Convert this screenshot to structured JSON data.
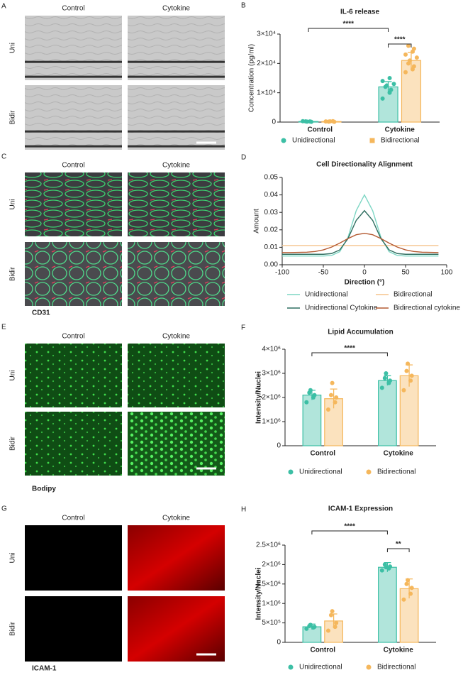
{
  "panels": [
    {
      "letter": "A",
      "columns": [
        "Control",
        "Cytokine"
      ],
      "rows": [
        "Uni",
        "Bidir"
      ]
    },
    {
      "letter": "C",
      "columns": [
        "Control",
        "Cytokine"
      ],
      "rows": [
        "Uni",
        "Bidir"
      ],
      "stain": "CD31"
    },
    {
      "letter": "E",
      "columns": [
        "Control",
        "Cytokine"
      ],
      "rows": [
        "Uni",
        "Bidir"
      ],
      "stain": "Bodipy"
    },
    {
      "letter": "G",
      "columns": [
        "Control",
        "Cytokine"
      ],
      "rows": [
        "Uni",
        "Bidir"
      ],
      "stain": "ICAM-1"
    }
  ],
  "chart_data": [
    {
      "label": "B",
      "type": "bar",
      "title": "IL-6 release",
      "ylabel": "Concentration (pg/ml)",
      "categories": [
        "Control",
        "Cytokine"
      ],
      "ylim": [
        0,
        30000
      ],
      "yticks": [
        0,
        {
          "value": 10000,
          "label": "1×10⁴"
        },
        {
          "value": 20000,
          "label": "2×10⁴"
        },
        {
          "value": 30000,
          "label": "3×10⁴"
        }
      ],
      "series": [
        {
          "name": "Unidirectional",
          "color": "#3cbfa5",
          "marker": "circle",
          "values": [
            200,
            12000
          ],
          "errors": [
            100,
            1800
          ],
          "points": [
            [
              300,
              200,
              100,
              250,
              150
            ],
            [
              8000,
              10000,
              11000,
              12000,
              12500,
              13000,
              14000,
              15000
            ]
          ]
        },
        {
          "name": "Bidirectional",
          "color": "#f5b75c",
          "marker": "square",
          "values": [
            200,
            21000
          ],
          "errors": [
            100,
            2800
          ],
          "points": [
            [
              200,
              300,
              100,
              150,
              250
            ],
            [
              17000,
              18000,
              19000,
              20000,
              21000,
              22000,
              23000,
              24000,
              25000,
              26000
            ]
          ]
        }
      ],
      "significance": [
        "****",
        "****"
      ],
      "legend": "bottom"
    },
    {
      "label": "D",
      "type": "line",
      "title": "Cell Directionality Alignment",
      "xlabel": "Direction (°)",
      "ylabel": "Amount",
      "x": [
        -100,
        -90,
        -80,
        -70,
        -60,
        -50,
        -40,
        -30,
        -20,
        -10,
        0,
        10,
        20,
        30,
        40,
        50,
        60,
        70,
        80,
        90
      ],
      "xlim": [
        -100,
        100
      ],
      "xticks": [
        -100,
        -50,
        0,
        50,
        100
      ],
      "ylim": [
        0,
        0.05
      ],
      "yticks": [
        {
          "value": 0,
          "label": "0.00"
        },
        {
          "value": 0.01,
          "label": "0.01"
        },
        {
          "value": 0.02,
          "label": "0.02"
        },
        {
          "value": 0.03,
          "label": "0.03"
        },
        {
          "value": 0.04,
          "label": "0.04"
        },
        {
          "value": 0.05,
          "label": "0.05"
        }
      ],
      "series": [
        {
          "name": "Unidirectional",
          "color": "#7dd6c4",
          "values": [
            0.005,
            0.005,
            0.005,
            0.005,
            0.005,
            0.005,
            0.0053,
            0.0075,
            0.0157,
            0.031,
            0.04,
            0.031,
            0.0157,
            0.0075,
            0.0053,
            0.005,
            0.005,
            0.005,
            0.005,
            0.005
          ]
        },
        {
          "name": "Bidirectional",
          "color": "#f5c48c",
          "values": [
            0.011,
            0.011,
            0.011,
            0.011,
            0.011,
            0.011,
            0.011,
            0.011,
            0.011,
            0.011,
            0.011,
            0.011,
            0.011,
            0.011,
            0.011,
            0.011,
            0.011,
            0.011,
            0.011,
            0.011
          ]
        },
        {
          "name": "Unidirectional Cytokine",
          "color": "#2f6e60",
          "values": [
            0.006,
            0.006,
            0.006,
            0.006,
            0.006,
            0.006,
            0.0064,
            0.0085,
            0.015,
            0.0254,
            0.031,
            0.0254,
            0.015,
            0.0085,
            0.0064,
            0.006,
            0.006,
            0.006,
            0.006,
            0.006
          ]
        },
        {
          "name": "Bidirectional cytokine",
          "color": "#b45a32",
          "values": [
            0.007,
            0.007,
            0.0071,
            0.0072,
            0.0076,
            0.0085,
            0.0101,
            0.0124,
            0.015,
            0.0172,
            0.018,
            0.0172,
            0.015,
            0.0124,
            0.0101,
            0.0085,
            0.0076,
            0.0072,
            0.0071,
            0.007
          ]
        }
      ],
      "legend": "bottom"
    },
    {
      "label": "F",
      "type": "bar",
      "title": "Lipid Accumulation",
      "ylabel": "Intensity/Nuclei",
      "categories": [
        "Control",
        "Cytokine"
      ],
      "ylim": [
        0,
        4000000
      ],
      "yticks": [
        0,
        {
          "value": 1000000,
          "label": "1×10⁶"
        },
        {
          "value": 2000000,
          "label": "2×10⁶"
        },
        {
          "value": 3000000,
          "label": "3×10⁶"
        },
        {
          "value": 4000000,
          "label": "4×10⁶"
        }
      ],
      "series": [
        {
          "name": "Unidirectional",
          "color": "#3cbfa5",
          "marker": "circle",
          "values": [
            2100000,
            2700000
          ],
          "errors": [
            200000,
            200000
          ],
          "points": [
            [
              1800000,
              2000000,
              2100000,
              2200000,
              2300000
            ],
            [
              2400000,
              2600000,
              2700000,
              2800000,
              3000000
            ]
          ]
        },
        {
          "name": "Bidirectional",
          "color": "#f5b75c",
          "marker": "circle",
          "values": [
            1950000,
            2900000
          ],
          "errors": [
            400000,
            450000
          ],
          "points": [
            [
              1500000,
              1800000,
              2000000,
              2100000,
              2600000
            ],
            [
              2300000,
              2700000,
              2900000,
              3100000,
              3400000
            ]
          ]
        }
      ],
      "significance": [
        "****"
      ],
      "legend": "bottom"
    },
    {
      "label": "H",
      "type": "bar",
      "title": "ICAM-1 Expression",
      "ylabel": "Intensity/Nuclei",
      "categories": [
        "Control",
        "Cytokine"
      ],
      "ylim": [
        0,
        2500000
      ],
      "yticks": [
        0,
        {
          "value": 500000,
          "label": "5×10⁵"
        },
        {
          "value": 1000000,
          "label": "1×10⁶"
        },
        {
          "value": 1500000,
          "label": "1.5×10⁶"
        },
        {
          "value": 2000000,
          "label": "2×10⁶"
        },
        {
          "value": 2500000,
          "label": "2.5×10⁶"
        }
      ],
      "series": [
        {
          "name": "Unidirectional",
          "color": "#3cbfa5",
          "marker": "circle",
          "values": [
            400000,
            1930000
          ],
          "errors": [
            70000,
            120000
          ],
          "points": [
            [
              350000,
              380000,
              400000,
              420000,
              450000
            ],
            [
              1850000,
              1900000,
              1950000,
              2000000,
              1930000
            ]
          ]
        },
        {
          "name": "Bidirectional",
          "color": "#f5b75c",
          "marker": "circle",
          "values": [
            550000,
            1380000
          ],
          "errors": [
            180000,
            250000
          ],
          "points": [
            [
              300000,
              400000,
              500000,
              700000,
              800000
            ],
            [
              1100000,
              1250000,
              1400000,
              1500000,
              1600000
            ]
          ]
        }
      ],
      "significance": [
        "****",
        "**"
      ],
      "legend": "bottom"
    }
  ]
}
